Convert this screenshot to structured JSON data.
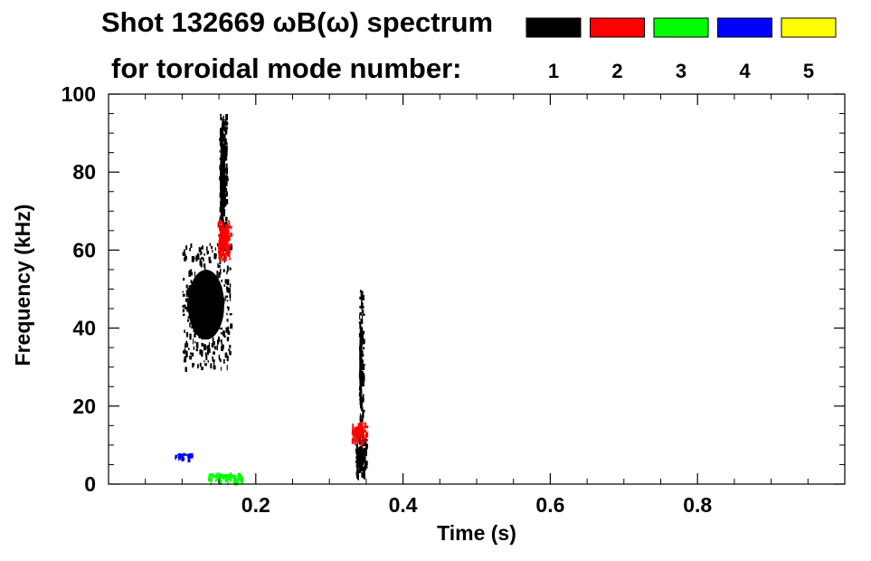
{
  "chart_data": {
    "type": "heatmap",
    "title": "Shot 132669 ωB(ω) spectrum",
    "legend_title": "for toroidal mode number:",
    "xlabel": "Time (s)",
    "ylabel": "Frequency (kHz)",
    "xlim": [
      0.0,
      1.0
    ],
    "ylim": [
      0,
      100
    ],
    "x_ticks": [
      0.2,
      0.4,
      0.6,
      0.8
    ],
    "x_tick_labels": [
      "0.2",
      "0.4",
      "0.6",
      "0.8"
    ],
    "y_ticks": [
      0,
      20,
      40,
      60,
      80,
      100
    ],
    "y_tick_labels": [
      "0",
      "20",
      "40",
      "60",
      "80",
      "100"
    ],
    "grid": false,
    "legend_position": "top-right",
    "modes": [
      {
        "label": "1",
        "color": "#000000"
      },
      {
        "label": "2",
        "color": "#ff0000"
      },
      {
        "label": "3",
        "color": "#00ff00"
      },
      {
        "label": "4",
        "color": "#0000ff"
      },
      {
        "label": "5",
        "color": "#ffff00"
      }
    ],
    "regions": [
      {
        "mode": "1",
        "time": [
          0.1,
          0.165
        ],
        "freq": [
          30,
          62
        ]
      },
      {
        "mode": "1",
        "time": [
          0.15,
          0.16
        ],
        "freq": [
          62,
          95
        ]
      },
      {
        "mode": "2",
        "time": [
          0.148,
          0.165
        ],
        "freq": [
          58,
          68
        ]
      },
      {
        "mode": "1",
        "time": [
          0.335,
          0.35
        ],
        "freq": [
          2,
          12
        ]
      },
      {
        "mode": "1",
        "time": [
          0.34,
          0.345
        ],
        "freq": [
          12,
          50
        ]
      },
      {
        "mode": "2",
        "time": [
          0.33,
          0.35
        ],
        "freq": [
          11,
          16
        ]
      },
      {
        "mode": "3",
        "time": [
          0.135,
          0.18
        ],
        "freq": [
          1,
          3
        ]
      },
      {
        "mode": "4",
        "time": [
          0.09,
          0.115
        ],
        "freq": [
          7,
          8
        ]
      }
    ]
  }
}
